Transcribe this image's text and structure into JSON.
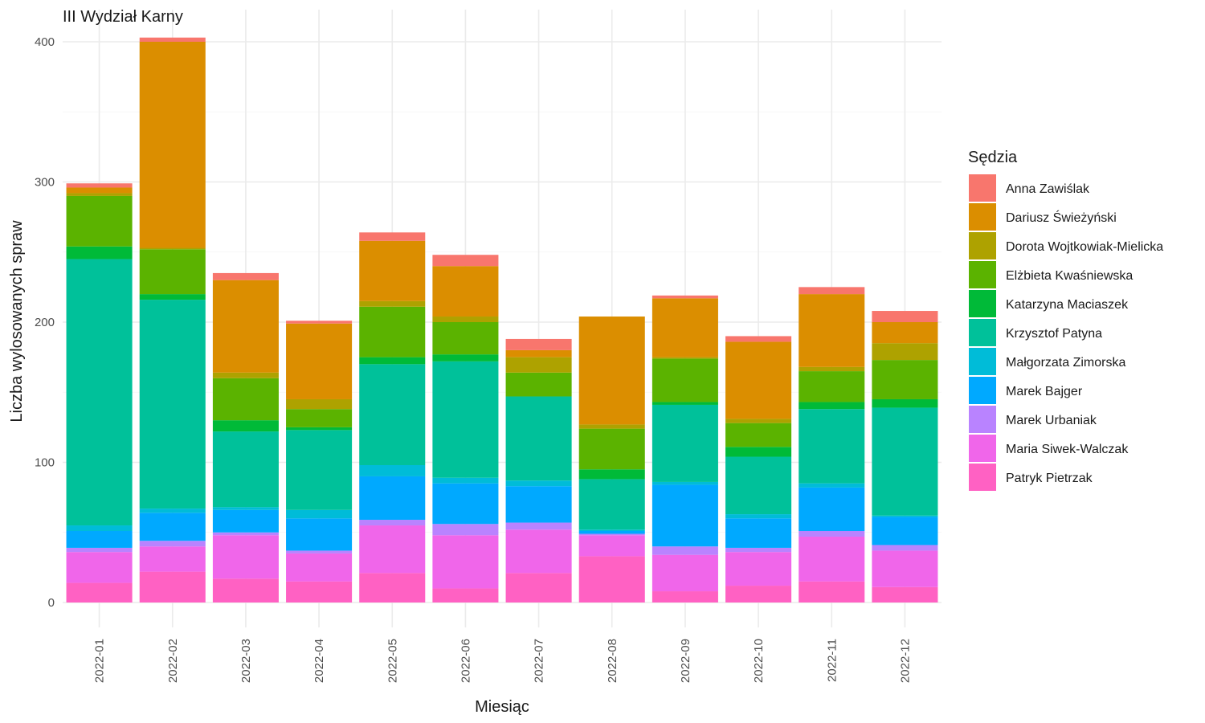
{
  "chart_data": {
    "type": "bar",
    "stacked": true,
    "title": "III Wydział Karny",
    "xlabel": "Miesiąc",
    "ylabel": "Liczba wylosowanych spraw",
    "legend_title": "Sędzia",
    "legend_position": "right",
    "grid": true,
    "ylim": [
      0,
      412
    ],
    "y_ticks": [
      0,
      100,
      200,
      300,
      400
    ],
    "categories": [
      "2022-01",
      "2022-02",
      "2022-03",
      "2022-04",
      "2022-05",
      "2022-06",
      "2022-07",
      "2022-08",
      "2022-09",
      "2022-10",
      "2022-11",
      "2022-12"
    ],
    "series": [
      {
        "name": "Patryk Pietrzak",
        "color": "#FF61C3",
        "values": [
          14,
          22,
          17,
          15,
          21,
          10,
          21,
          33,
          8,
          12,
          15,
          11
        ]
      },
      {
        "name": "Maria Siwek-Walczak",
        "color": "#F066EA",
        "values": [
          22,
          18,
          31,
          20,
          34,
          38,
          31,
          15,
          26,
          24,
          32,
          26
        ]
      },
      {
        "name": "Marek Urbaniak",
        "color": "#B983FF",
        "values": [
          3,
          4,
          2,
          2,
          4,
          8,
          5,
          1,
          6,
          3,
          4,
          4
        ]
      },
      {
        "name": "Marek Bajger",
        "color": "#00A9FF",
        "values": [
          12,
          20,
          16,
          23,
          31,
          29,
          26,
          2,
          44,
          21,
          31,
          20
        ]
      },
      {
        "name": "Małgorzata Zimorska",
        "color": "#00BCD8",
        "values": [
          4,
          3,
          2,
          6,
          8,
          4,
          4,
          1,
          2,
          3,
          3,
          1
        ]
      },
      {
        "name": "Krzysztof Patyna",
        "color": "#00C19A",
        "values": [
          190,
          149,
          54,
          57,
          72,
          83,
          60,
          36,
          55,
          41,
          53,
          77
        ]
      },
      {
        "name": "Katarzyna Maciaszek",
        "color": "#00BA38",
        "values": [
          9,
          4,
          8,
          2,
          5,
          5,
          0,
          7,
          2,
          7,
          5,
          6
        ]
      },
      {
        "name": "Elżbieta Kwaśniewska",
        "color": "#5BB300",
        "values": [
          36,
          32,
          30,
          13,
          36,
          23,
          17,
          29,
          31,
          17,
          22,
          28
        ]
      },
      {
        "name": "Dorota Wojtkowiak-Mielicka",
        "color": "#AEA200",
        "values": [
          2,
          1,
          4,
          7,
          4,
          4,
          11,
          3,
          1,
          3,
          3,
          12
        ]
      },
      {
        "name": "Dariusz Świeżyński",
        "color": "#DB8E00",
        "values": [
          4,
          147,
          66,
          54,
          43,
          36,
          5,
          77,
          42,
          55,
          52,
          15
        ]
      },
      {
        "name": "Anna Zawiślak",
        "color": "#F8766D",
        "values": [
          3,
          3,
          5,
          2,
          6,
          8,
          8,
          0,
          2,
          4,
          5,
          8
        ]
      }
    ],
    "legend_order": [
      "Anna Zawiślak",
      "Dariusz Świeżyński",
      "Dorota Wojtkowiak-Mielicka",
      "Elżbieta Kwaśniewska",
      "Katarzyna Maciaszek",
      "Krzysztof Patyna",
      "Małgorzata Zimorska",
      "Marek Bajger",
      "Marek Urbaniak",
      "Maria Siwek-Walczak",
      "Patryk Pietrzak"
    ]
  }
}
